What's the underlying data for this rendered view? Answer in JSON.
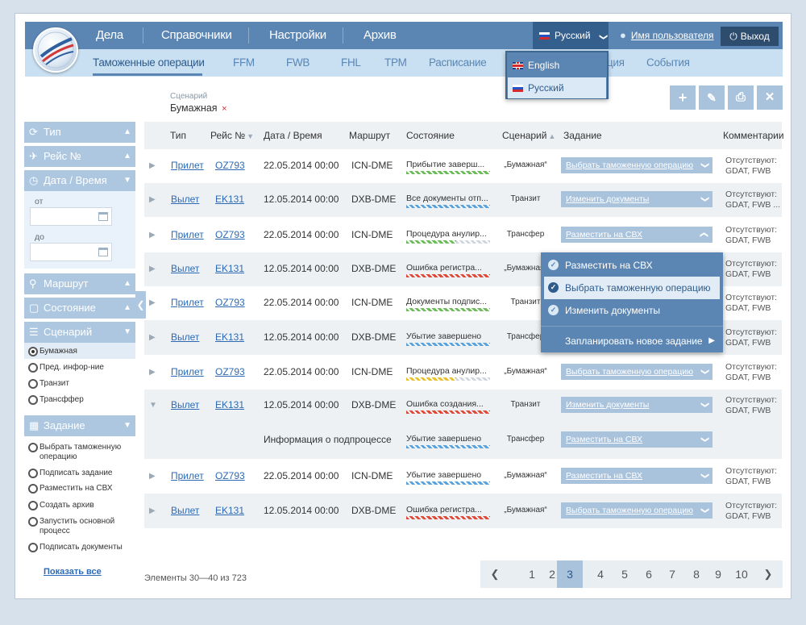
{
  "nav": {
    "tabs": [
      "Дела",
      "Справочники",
      "Настройки",
      "Архив"
    ],
    "language": "Русский",
    "username": "Имя пользователя",
    "logout": "Выход"
  },
  "subnav": [
    "Таможенные операции",
    "FFM",
    "FWB",
    "FHL",
    "TPM",
    "Расписание",
    "Информация",
    "События"
  ],
  "lang_dropdown": {
    "options": [
      "English",
      "Русский"
    ],
    "selected": "Русский"
  },
  "scenario": {
    "label": "Сценарий",
    "value": "Бумажная",
    "remove": "×"
  },
  "actions": {
    "add": "+",
    "edit": "✎",
    "print": "⎙",
    "close": "✕"
  },
  "sidebar": {
    "type": "Тип",
    "flight": "Рейс №",
    "datetime": "Дата / Время",
    "from_label": "от",
    "to_label": "до",
    "route": "Маршрут",
    "status": "Состояние",
    "scenario": "Сценарий",
    "scenario_options": [
      "Бумажная",
      "Пред. инфор-ние",
      "Транзит",
      "Трансффер"
    ],
    "task": "Задание",
    "task_options": [
      "Выбрать таможенную операцию",
      "Подписать задание",
      "Разместить на СВХ",
      "Создать архив",
      "Запустить основной процесс",
      "Подписать документы"
    ],
    "show_all": "Показать все"
  },
  "table": {
    "headers": {
      "type": "Тип",
      "flight": "Рейс №",
      "datetime": "Дата / Время",
      "route": "Маршрут",
      "status": "Состояние",
      "scenario": "Сценарий",
      "task": "Задание",
      "comments": "Комментарии"
    },
    "rows": [
      {
        "type": "Прилет",
        "flight": "OZ793",
        "datetime": "22.05.2014 00:00",
        "route": "ICN-DME",
        "status": "Прибытие заверш...",
        "scenario": "„Бумажная“",
        "task": "Выбрать таможенную операцию",
        "comment": "Отсутствуют: GDAT, FWB",
        "bar_color": "#6dbb5a",
        "bar_fill": 1.0
      },
      {
        "type": "Вылет",
        "flight": "EK131",
        "datetime": "12.05.2014 00:00",
        "route": "DXB-DME",
        "status": "Все документы отп...",
        "scenario": "Транзит",
        "task": "Изменить документы",
        "comment": "Отсутствуют: GDAT, FWB ...",
        "bar_color": "#5aa2dc",
        "bar_fill": 1.0
      },
      {
        "type": "Прилет",
        "flight": "OZ793",
        "datetime": "22.05.2014 00:00",
        "route": "ICN-DME",
        "status": "Процедура анулир...",
        "scenario": "Трансфер",
        "task": "Разместить на СВХ",
        "comment": "Отсутствуют: GDAT, FWB",
        "bar_color": "#6dbb5a",
        "bar_fill": 0.6
      },
      {
        "type": "Вылет",
        "flight": "EK131",
        "datetime": "12.05.2014 00:00",
        "route": "DXB-DME",
        "status": "Ошибка регистра...",
        "scenario": "„Бумажная“",
        "task": "",
        "comment": "Отсутствуют: GDAT, FWB",
        "bar_color": "#de4a3a",
        "bar_fill": 1.0
      },
      {
        "type": "Прилет",
        "flight": "OZ793",
        "datetime": "22.05.2014 00:00",
        "route": "ICN-DME",
        "status": "Документы подпис...",
        "scenario": "Транзит",
        "task": "",
        "comment": "Отсутствуют: GDAT, FWB",
        "bar_color": "#6dbb5a",
        "bar_fill": 1.0
      },
      {
        "type": "Вылет",
        "flight": "EK131",
        "datetime": "12.05.2014 00:00",
        "route": "DXB-DME",
        "status": "Убытие завершено",
        "scenario": "Трансфер",
        "task": "",
        "comment": "Отсутствуют: GDAT, FWB",
        "bar_color": "#5aa2dc",
        "bar_fill": 1.0
      },
      {
        "type": "Прилет",
        "flight": "OZ793",
        "datetime": "22.05.2014 00:00",
        "route": "ICN-DME",
        "status": "Процедура анулир...",
        "scenario": "„Бумажная“",
        "task": "Выбрать таможенную операцию",
        "comment": "Отсутствуют: GDAT, FWB",
        "bar_color": "#e8c12e",
        "bar_fill": 0.6
      },
      {
        "type": "Вылет",
        "flight": "EK131",
        "datetime": "12.05.2014 00:00",
        "route": "DXB-DME",
        "status": "Ошибка создания...",
        "scenario": "Транзит",
        "task": "Изменить документы",
        "comment": "Отсутствуют: GDAT, FWB",
        "bar_color": "#de4a3a",
        "bar_fill": 1.0
      },
      {
        "type": "Прилет",
        "flight": "OZ793",
        "datetime": "22.05.2014 00:00",
        "route": "ICN-DME",
        "status": "Убытие завершено",
        "scenario": "„Бумажная“",
        "task": "Разместить на СВХ",
        "comment": "Отсутствуют: GDAT, FWB",
        "bar_color": "#5aa2dc",
        "bar_fill": 1.0
      },
      {
        "type": "Вылет",
        "flight": "EK131",
        "datetime": "12.05.2014 00:00",
        "route": "DXB-DME",
        "status": "Ошибка регистра...",
        "scenario": "„Бумажная“",
        "task": "Выбрать таможенную операцию",
        "comment": "Отсутствуют: GDAT, FWB",
        "bar_color": "#de4a3a",
        "bar_fill": 1.0
      }
    ],
    "subprocess": {
      "label": "Информация о подпроцессе",
      "status": "Убытие завершено",
      "scenario": "Трансфер",
      "task": "Разместить на СВХ",
      "bar_color": "#5aa2dc",
      "bar_fill": 1.0
    }
  },
  "task_dropdown": {
    "items": [
      "Разместить на СВХ",
      "Выбрать таможенную операцию",
      "Изменить документы"
    ],
    "selected": "Выбрать таможенную операцию",
    "schedule": "Запланировать новое задание"
  },
  "footer": {
    "count_prefix": "Элементы",
    "range": "30—40",
    "of": "из",
    "total": "723",
    "pages": [
      "1",
      "2",
      "3",
      "4",
      "5",
      "6",
      "7",
      "8",
      "9",
      "10"
    ],
    "current_page": "3"
  }
}
